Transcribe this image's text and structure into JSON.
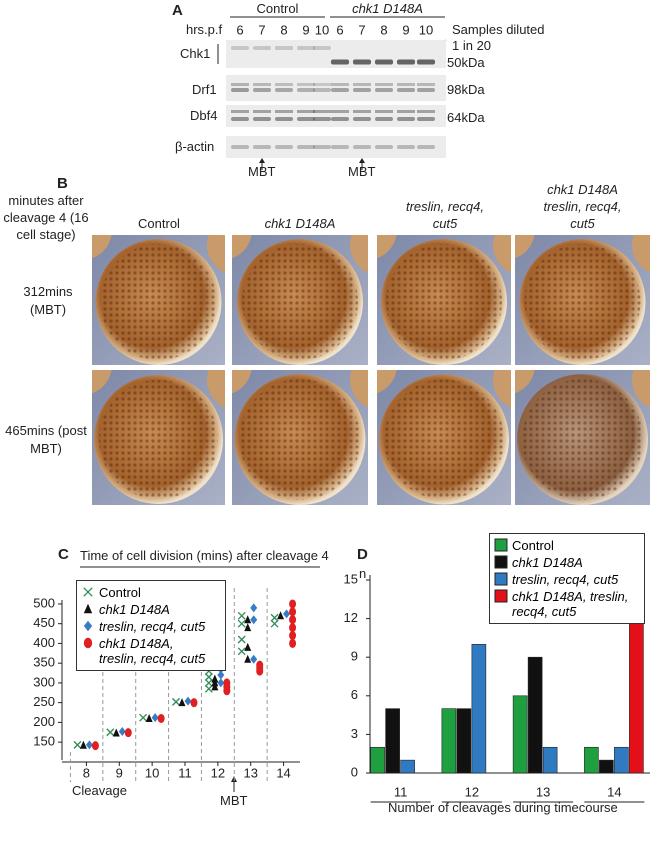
{
  "panel_a": {
    "label": "A",
    "hrs_label": "hrs.p.f",
    "groups": [
      "Control",
      "chk1 D148A"
    ],
    "lanes": [
      "6",
      "7",
      "8",
      "9",
      "10",
      "6",
      "7",
      "8",
      "9",
      "10"
    ],
    "rows": [
      "Chk1",
      "Drf1",
      "Dbf4",
      "β-actin"
    ],
    "note": "Samples diluted 1 in 20",
    "markers": [
      "50kDa",
      "98kDa",
      "64kDa"
    ],
    "mbt": [
      "MBT",
      "MBT"
    ]
  },
  "panel_b": {
    "label": "B",
    "header": "minutes after cleavage 4 (16 cell stage)",
    "columns": [
      "Control",
      "chk1 D148A",
      "treslin, recq4, cut5",
      "chk1 D148A treslin, recq4, cut5"
    ],
    "rows": [
      "312mins (MBT)",
      "465mins (post MBT)"
    ]
  },
  "chart_data": [
    {
      "type": "scatter",
      "panel_label": "C",
      "title": "Time of cell division (mins) after cleavage 4",
      "x_label": "Cleavage",
      "annotation": "MBT",
      "legend": "top-left",
      "xlim": [
        7.5,
        14.5
      ],
      "xticks": [
        8,
        9,
        10,
        11,
        12,
        13,
        14
      ],
      "ylim": [
        125,
        510
      ],
      "yticks": [
        150,
        200,
        250,
        300,
        350,
        400,
        450,
        500
      ],
      "series": [
        {
          "name": "Control",
          "color": "#2e8b57",
          "marker": "x",
          "x": [
            8,
            9,
            10,
            11,
            12,
            12,
            12,
            12,
            13,
            13,
            13,
            13,
            14,
            14
          ],
          "values": [
            143,
            175,
            212,
            252,
            285,
            300,
            315,
            330,
            380,
            410,
            450,
            470,
            450,
            465
          ]
        },
        {
          "name": "chk1 D148A",
          "color": "#111111",
          "marker": "triangle",
          "x": [
            8,
            9,
            10,
            11,
            12,
            12,
            12,
            13,
            13,
            13,
            13,
            14
          ],
          "values": [
            142,
            173,
            210,
            250,
            290,
            300,
            310,
            360,
            390,
            440,
            460,
            470
          ]
        },
        {
          "name": "treslin, recq4, cut5",
          "color": "#3a7cc4",
          "marker": "diamond",
          "x": [
            8,
            9,
            10,
            11,
            12,
            12,
            12,
            13,
            13,
            13,
            14
          ],
          "values": [
            143,
            177,
            212,
            254,
            300,
            320,
            335,
            360,
            460,
            490,
            475
          ]
        },
        {
          "name": "chk1 D148A, treslin, recq4, cut5",
          "color": "#e02020",
          "marker": "circle",
          "x": [
            8,
            9,
            10,
            11,
            12,
            12,
            12,
            13,
            13,
            13,
            14,
            14,
            14,
            14,
            14,
            14
          ],
          "values": [
            141,
            174,
            210,
            250,
            280,
            290,
            300,
            330,
            338,
            345,
            400,
            420,
            440,
            460,
            480,
            500
          ]
        }
      ]
    },
    {
      "type": "bar",
      "panel_label": "D",
      "y_label": "n",
      "x_label": "Number of cleavages during timecourse",
      "legend": "top-right",
      "categories": [
        "11",
        "12",
        "13",
        "14"
      ],
      "ylim": [
        0,
        15
      ],
      "yticks": [
        0,
        3,
        6,
        9,
        12,
        15
      ],
      "series": [
        {
          "name": "Control",
          "color": "#1fa040",
          "values": [
            2,
            5,
            6,
            2
          ]
        },
        {
          "name": "chk1 D148A",
          "color": "#111111",
          "values": [
            5,
            5,
            9,
            1
          ]
        },
        {
          "name": "treslin, recq4, cut5",
          "color": "#2f7ac0",
          "values": [
            1,
            10,
            2,
            2
          ]
        },
        {
          "name": "chk1 D148A, treslin, recq4, cut5",
          "color": "#e3101a",
          "values": [
            0,
            0,
            0,
            15
          ]
        }
      ]
    }
  ]
}
